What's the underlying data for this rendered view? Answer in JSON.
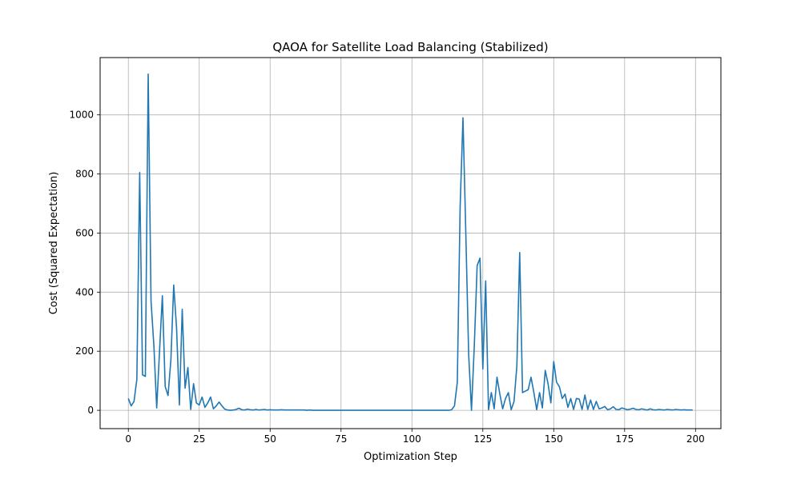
{
  "chart_data": {
    "type": "line",
    "title": "QAOA for Satellite Load Balancing (Stabilized)",
    "xlabel": "Optimization Step",
    "ylabel": "Cost (Squared Expectation)",
    "xlim": [
      -9.95,
      208.95
    ],
    "ylim": [
      -62,
      1194
    ],
    "xticks": [
      0,
      25,
      50,
      75,
      100,
      125,
      150,
      175,
      200
    ],
    "yticks": [
      0,
      200,
      400,
      600,
      800,
      1000
    ],
    "grid": true,
    "line_color": "#1f77b4",
    "series": [
      {
        "x": [
          0,
          1,
          2,
          3,
          4,
          5,
          6,
          7,
          8,
          9,
          10,
          11,
          12,
          13,
          14,
          15,
          16,
          17,
          18,
          19,
          20,
          21,
          22,
          23,
          24,
          25,
          26,
          27,
          28,
          29,
          30,
          31,
          32,
          33,
          34,
          35,
          36,
          37,
          38,
          39,
          40,
          41,
          42,
          43,
          44,
          45,
          46,
          47,
          48,
          49,
          50,
          51,
          52,
          53,
          54,
          55,
          56,
          57,
          58,
          59,
          60,
          61,
          62,
          63,
          64,
          65,
          66,
          67,
          68,
          69,
          70,
          71,
          72,
          73,
          74,
          75,
          76,
          77,
          78,
          79,
          80,
          81,
          82,
          83,
          84,
          85,
          86,
          87,
          88,
          89,
          90,
          91,
          92,
          93,
          94,
          95,
          96,
          97,
          98,
          99,
          100,
          101,
          102,
          103,
          104,
          105,
          106,
          107,
          108,
          109,
          110,
          111,
          112,
          113,
          114,
          115,
          116,
          117,
          118,
          119,
          120,
          121,
          122,
          123,
          124,
          125,
          126,
          127,
          128,
          129,
          130,
          131,
          132,
          133,
          134,
          135,
          136,
          137,
          138,
          139,
          140,
          141,
          142,
          143,
          144,
          145,
          146,
          147,
          148,
          149,
          150,
          151,
          152,
          153,
          154,
          155,
          156,
          157,
          158,
          159,
          160,
          161,
          162,
          163,
          164,
          165,
          166,
          167,
          168,
          169,
          170,
          171,
          172,
          173,
          174,
          175,
          176,
          177,
          178,
          179,
          180,
          181,
          182,
          183,
          184,
          185,
          186,
          187,
          188,
          189,
          190,
          191,
          192,
          193,
          194,
          195,
          196,
          197,
          198,
          199
        ],
        "values": [
          40,
          15,
          30,
          105,
          805,
          120,
          115,
          1138,
          370,
          220,
          8,
          200,
          388,
          80,
          50,
          170,
          424,
          280,
          18,
          342,
          75,
          145,
          3,
          90,
          25,
          18,
          45,
          10,
          25,
          45,
          5,
          15,
          28,
          15,
          4,
          1,
          0,
          1,
          3,
          7,
          2,
          1,
          4,
          2,
          1,
          3,
          1,
          2,
          3,
          1,
          2,
          1,
          1,
          1,
          2,
          1,
          1,
          1,
          1,
          1,
          1,
          1,
          1,
          0,
          1,
          0,
          0,
          0,
          0,
          0,
          0,
          0,
          0,
          0,
          0,
          0,
          0,
          0,
          0,
          0,
          0,
          0,
          0,
          0,
          0,
          0,
          0,
          0,
          0,
          0,
          0,
          0,
          0,
          0,
          0,
          0,
          0,
          0,
          0,
          0,
          0,
          0,
          0,
          0,
          0,
          0,
          0,
          0,
          0,
          0,
          0,
          0,
          0,
          0,
          2,
          15,
          95,
          690,
          990,
          600,
          190,
          0,
          220,
          490,
          515,
          140,
          438,
          2,
          60,
          5,
          112,
          55,
          5,
          40,
          60,
          2,
          30,
          150,
          534,
          60,
          65,
          70,
          112,
          60,
          2,
          60,
          8,
          135,
          90,
          25,
          165,
          95,
          80,
          40,
          55,
          10,
          40,
          3,
          40,
          38,
          3,
          52,
          3,
          35,
          3,
          30,
          5,
          8,
          13,
          2,
          5,
          12,
          3,
          2,
          8,
          5,
          2,
          4,
          7,
          3,
          2,
          5,
          3,
          1,
          5,
          2,
          1,
          3,
          2,
          1,
          3,
          2,
          1,
          3,
          2,
          1,
          2,
          1,
          1,
          1
        ]
      }
    ]
  }
}
